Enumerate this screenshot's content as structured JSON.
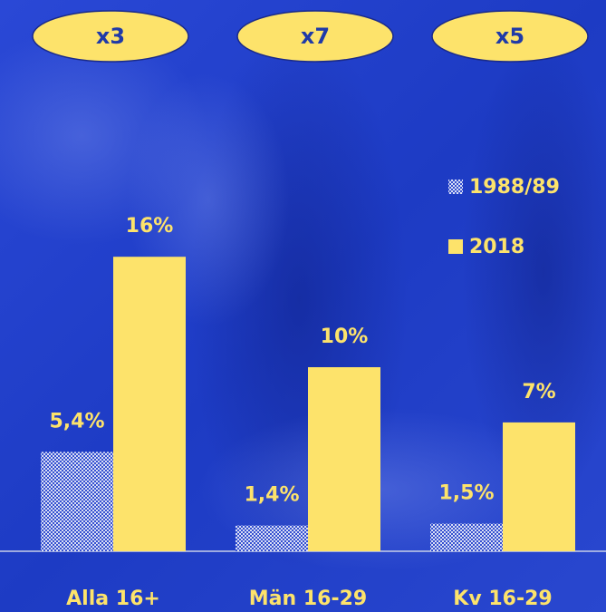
{
  "chart_data": {
    "type": "bar",
    "categories": [
      "Alla 16+",
      "Män 16-29",
      "Kv 16-29"
    ],
    "annotations": [
      "x3",
      "x7",
      "x5"
    ],
    "series": [
      {
        "name": "1988/89",
        "color": "#d9def5",
        "values": [
          5.4,
          1.4,
          1.5
        ],
        "value_labels": [
          "5,4%",
          "1,4%",
          "1,5%"
        ]
      },
      {
        "name": "2018",
        "color": "#fde36b",
        "values": [
          16,
          10,
          7
        ],
        "value_labels": [
          "16%",
          "10%",
          "7%"
        ]
      }
    ]
  }
}
